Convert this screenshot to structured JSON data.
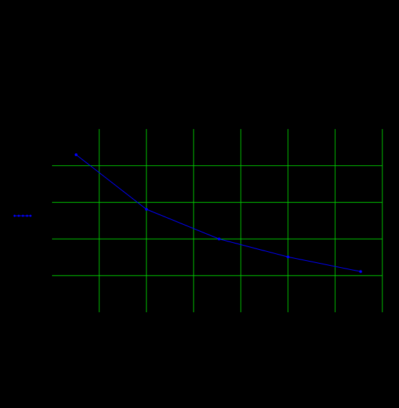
{
  "chart_data": {
    "type": "line",
    "x": [
      0.51,
      2.0,
      3.54,
      5.0,
      6.54
    ],
    "values": [
      4.3,
      2.81,
      2.0,
      1.51,
      1.11
    ],
    "color": "#0000ff",
    "grid_color": "#00cc00",
    "xlim": [
      0,
      7
    ],
    "xticks": [
      1,
      2,
      3,
      4,
      5,
      6,
      7
    ],
    "ylim": [
      0,
      5
    ],
    "yticks": [
      1,
      2,
      3,
      4
    ],
    "grid": true,
    "legend": "left"
  }
}
